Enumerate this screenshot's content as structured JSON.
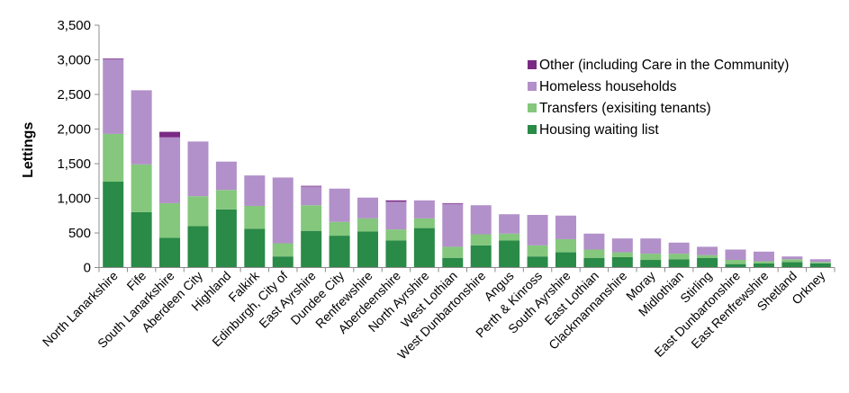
{
  "chart_data": {
    "type": "bar",
    "stacked": true,
    "title": "",
    "xlabel": "",
    "ylabel": "Lettings",
    "ylim": [
      0,
      3500
    ],
    "yticks": [
      0,
      500,
      1000,
      1500,
      2000,
      2500,
      3000,
      3500
    ],
    "ytick_labels": [
      "0",
      "500",
      "1,000",
      "1,500",
      "2,000",
      "2,500",
      "3,000",
      "3,500"
    ],
    "grid": false,
    "legend_position": "top-right",
    "categories": [
      "North Lanarkshire",
      "Fife",
      "South Lanarkshire",
      "Aberdeen City",
      "Highland",
      "Falkirk",
      "Edinburgh, City of",
      "East Ayrshire",
      "Dundee City",
      "Renfrewshire",
      "Aberdeenshire",
      "North Ayrshire",
      "West Lothian",
      "West Dunbartonshire",
      "Angus",
      "Perth & Kinross",
      "South Ayrshire",
      "East Lothian",
      "Clackmannanshire",
      "Moray",
      "Midlothian",
      "Stirling",
      "East Dunbartonshire",
      "East Renfrewshire",
      "Shetland",
      "Orkney"
    ],
    "series": [
      {
        "name": "Housing waiting list",
        "color": "#2a8a47",
        "values": [
          1240,
          800,
          430,
          600,
          840,
          560,
          160,
          530,
          460,
          520,
          390,
          570,
          140,
          320,
          390,
          160,
          220,
          140,
          150,
          110,
          120,
          140,
          50,
          60,
          80,
          60
        ]
      },
      {
        "name": "Transfers (exisiting tenants)",
        "color": "#84c77d",
        "values": [
          690,
          690,
          500,
          430,
          280,
          330,
          190,
          370,
          200,
          190,
          160,
          140,
          160,
          160,
          100,
          160,
          190,
          120,
          70,
          90,
          80,
          40,
          60,
          30,
          40,
          20
        ]
      },
      {
        "name": "Homeless households",
        "color": "#b290c9",
        "values": [
          1080,
          1070,
          950,
          790,
          410,
          440,
          950,
          270,
          480,
          300,
          400,
          260,
          620,
          420,
          280,
          440,
          340,
          230,
          200,
          220,
          160,
          120,
          150,
          140,
          40,
          40
        ]
      },
      {
        "name": "Other (including Care in the Community)",
        "color": "#7a2a84",
        "values": [
          10,
          0,
          80,
          0,
          0,
          0,
          0,
          10,
          0,
          0,
          20,
          0,
          10,
          0,
          0,
          0,
          0,
          0,
          0,
          0,
          0,
          0,
          0,
          0,
          0,
          0
        ]
      }
    ],
    "legend_order": [
      "Other (including Care in the Community)",
      "Homeless households",
      "Transfers (exisiting tenants)",
      "Housing waiting list"
    ]
  }
}
